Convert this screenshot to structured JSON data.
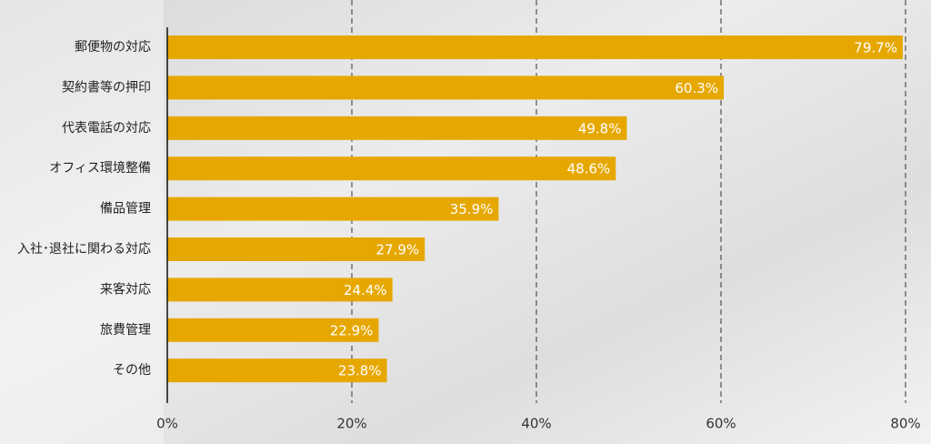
{
  "chart_data": {
    "type": "bar",
    "orientation": "horizontal",
    "categories": [
      "郵便物の対応",
      "契約書等の押印",
      "代表電話の対応",
      "オフィス環境整備",
      "備品管理",
      "入社･退社に関わる対応",
      "来客対応",
      "旅費管理",
      "その他"
    ],
    "values": [
      79.7,
      60.3,
      49.8,
      48.6,
      35.9,
      27.9,
      24.4,
      22.9,
      23.8
    ],
    "value_labels": [
      "79.7%",
      "60.3%",
      "49.8%",
      "48.6%",
      "35.9%",
      "27.9%",
      "24.4%",
      "22.9%",
      "23.8%"
    ],
    "color": "#e6a800",
    "xlim": [
      0,
      80
    ],
    "xticks": [
      {
        "value": 0,
        "label": "0%"
      },
      {
        "value": 20,
        "label": "20%"
      },
      {
        "value": 40,
        "label": "40%"
      },
      {
        "value": 60,
        "label": "60%"
      },
      {
        "value": 80,
        "label": "80%"
      }
    ],
    "grid": true
  }
}
